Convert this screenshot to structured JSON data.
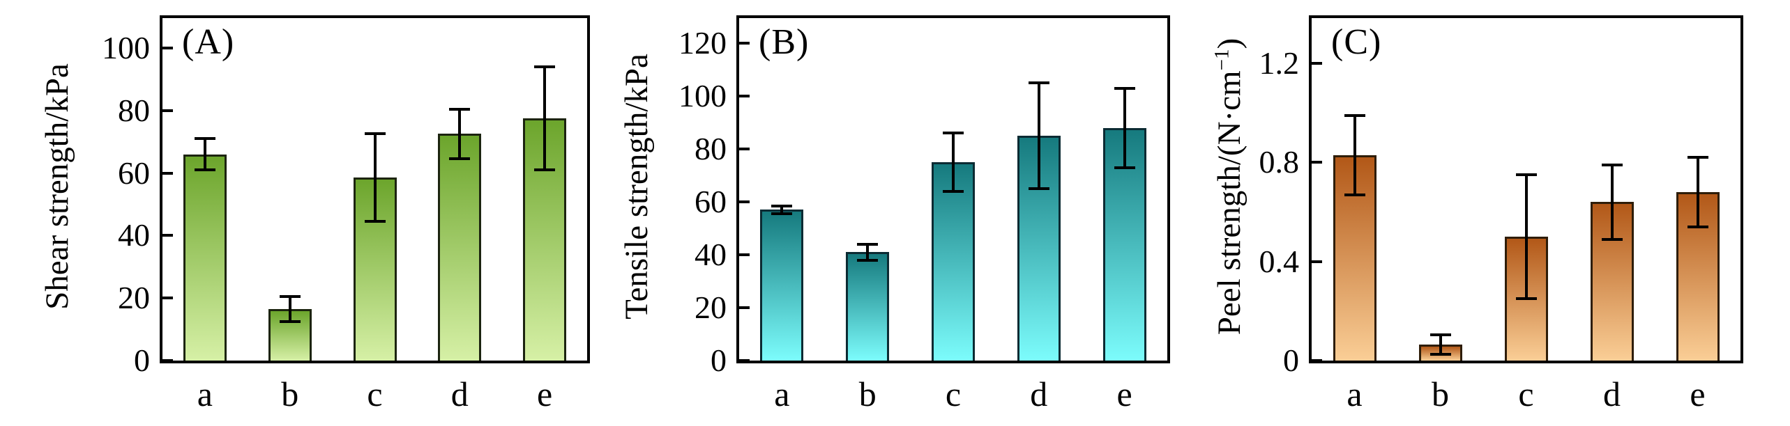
{
  "figure": {
    "background": "#ffffff",
    "description_labels": {
      "panel_a": "(A)",
      "panel_b": "(B)",
      "panel_c": "(C)"
    }
  },
  "chart_data": [
    {
      "type": "bar",
      "panel_label": "(A)",
      "title": "",
      "xlabel": "",
      "ylabel": "Shear strength/kPa",
      "ylabel_parts": {
        "prefix": "Shear strength/kPa",
        "sup": "",
        "suffix": ""
      },
      "categories": [
        "a",
        "b",
        "c",
        "d",
        "e"
      ],
      "values": [
        66,
        16.5,
        58.5,
        72.5,
        77.5
      ],
      "errors": [
        5,
        4,
        14,
        8,
        16.5
      ],
      "ylim": [
        0,
        110
      ],
      "yticks": [
        0,
        20,
        40,
        60,
        80,
        100
      ],
      "ytick_labels": [
        "0",
        "20",
        "40",
        "60",
        "80",
        "100"
      ],
      "grid": false,
      "legend": "none",
      "bar_color_top": "#6ca52c",
      "bar_color_bottom": "#d6f0a6",
      "bar_border_color": "#1c2410",
      "error_color": "#000000"
    },
    {
      "type": "bar",
      "panel_label": "(B)",
      "title": "",
      "xlabel": "",
      "ylabel": "Tensile strength/kPa",
      "ylabel_parts": {
        "prefix": "Tensile strength/kPa",
        "sup": "",
        "suffix": ""
      },
      "categories": [
        "a",
        "b",
        "c",
        "d",
        "e"
      ],
      "values": [
        57,
        41,
        75,
        85,
        88
      ],
      "errors": [
        1.5,
        3,
        11,
        20,
        15
      ],
      "ylim": [
        0,
        130
      ],
      "yticks": [
        0,
        20,
        40,
        60,
        80,
        100,
        120
      ],
      "ytick_labels": [
        "0",
        "20",
        "40",
        "60",
        "80",
        "100",
        "120"
      ],
      "grid": false,
      "legend": "none",
      "bar_color_top": "#167a7e",
      "bar_color_bottom": "#7cfcfc",
      "bar_border_color": "#0c2b33",
      "error_color": "#000000"
    },
    {
      "type": "bar",
      "panel_label": "(C)",
      "title": "",
      "xlabel": "",
      "ylabel": "Peel strength/(N·cm−1)",
      "ylabel_parts": {
        "prefix": "Peel strength/(N·cm",
        "sup": "−1",
        "suffix": ")"
      },
      "categories": [
        "a",
        "b",
        "c",
        "d",
        "e"
      ],
      "values": [
        0.83,
        0.065,
        0.5,
        0.64,
        0.68
      ],
      "errors": [
        0.16,
        0.04,
        0.25,
        0.15,
        0.14
      ],
      "ylim": [
        0,
        1.39
      ],
      "yticks": [
        0,
        0.4,
        0.8,
        1.2
      ],
      "ytick_labels": [
        "0",
        "0.4",
        "0.8",
        "1.2"
      ],
      "grid": false,
      "legend": "none",
      "bar_color_top": "#b25818",
      "bar_color_bottom": "#face96",
      "bar_border_color": "#2e1d09",
      "error_color": "#000000"
    }
  ]
}
